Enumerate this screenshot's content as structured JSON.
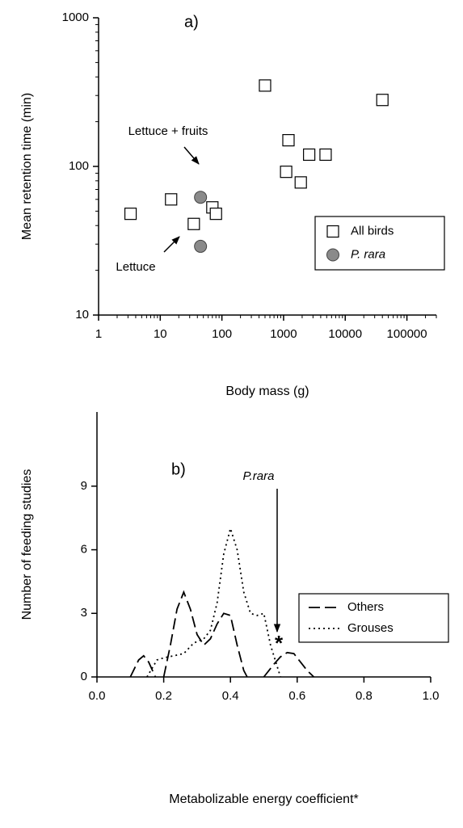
{
  "chart_data": [
    {
      "type": "scatter",
      "title": "a)",
      "xlabel": "Body mass (g)",
      "ylabel": "Mean retention time (min)",
      "xscale": "log",
      "yscale": "log",
      "xlim": [
        1,
        300000
      ],
      "ylim": [
        10,
        1000
      ],
      "xticks": [
        1,
        10,
        100,
        1000,
        10000,
        100000
      ],
      "yticks": [
        10,
        100,
        1000
      ],
      "legend": "lower right",
      "series": [
        {
          "name": "All birds",
          "marker": "square",
          "color": "#ffffff",
          "x": [
            3.3,
            15,
            35,
            70,
            80,
            500,
            1100,
            1200,
            1900,
            2600,
            4800,
            40000
          ],
          "values": [
            48,
            60,
            41,
            53,
            48,
            350,
            92,
            150,
            78,
            120,
            120,
            280
          ]
        },
        {
          "name": "P. rara",
          "marker": "circle",
          "color": "#8a8a8a",
          "font_style": "italic",
          "x": [
            45,
            45
          ],
          "values": [
            62,
            29
          ]
        }
      ],
      "annotations": [
        "Lettuce + fruits",
        "Lettuce"
      ]
    },
    {
      "type": "line",
      "title": "b)",
      "xlabel": "Metabolizable energy coefficient*",
      "ylabel": "Number of feeding studies",
      "xlim": [
        0,
        1
      ],
      "ylim": [
        0,
        12.5
      ],
      "xticks": [
        {
          "value": 0,
          "label": "0.0"
        },
        0.2,
        0.4,
        0.6,
        0.8,
        {
          "value": 1,
          "label": "1.0"
        }
      ],
      "yticks": [
        0,
        3,
        6,
        9
      ],
      "legend": "lower right",
      "series": [
        {
          "name": "Others",
          "line_style": "dashed",
          "color": "#000000",
          "x": [
            0.1,
            0.125,
            0.14,
            0.155,
            0.175,
            0.19,
            0.2,
            0.22,
            0.24,
            0.26,
            0.28,
            0.3,
            0.32,
            0.34,
            0.36,
            0.38,
            0.4,
            0.42,
            0.44,
            0.45,
            0.48,
            0.5,
            0.53,
            0.55,
            0.57,
            0.59,
            0.61,
            0.63,
            0.65
          ],
          "values": [
            0,
            0.8,
            1.0,
            0.7,
            0,
            null,
            0,
            1.5,
            3.2,
            4.0,
            3.2,
            2.0,
            1.5,
            1.8,
            2.5,
            3.0,
            2.9,
            1.5,
            0.3,
            0,
            null,
            0,
            0.6,
            0.95,
            1.15,
            1.1,
            0.7,
            0.3,
            0
          ]
        },
        {
          "name": "Grouses",
          "line_style": "dotted",
          "color": "#000000",
          "x": [
            0.15,
            0.18,
            0.2,
            0.23,
            0.26,
            0.29,
            0.32,
            0.34,
            0.36,
            0.38,
            0.4,
            0.42,
            0.44,
            0.46,
            0.48,
            0.5,
            0.52,
            0.55
          ],
          "values": [
            0,
            0.8,
            0.9,
            1.0,
            1.1,
            1.6,
            1.8,
            2.2,
            3.5,
            5.8,
            7.0,
            6.0,
            4.0,
            3.0,
            2.9,
            3.0,
            1.5,
            0
          ]
        }
      ],
      "annotations": [
        "P.rara",
        "*"
      ]
    }
  ]
}
